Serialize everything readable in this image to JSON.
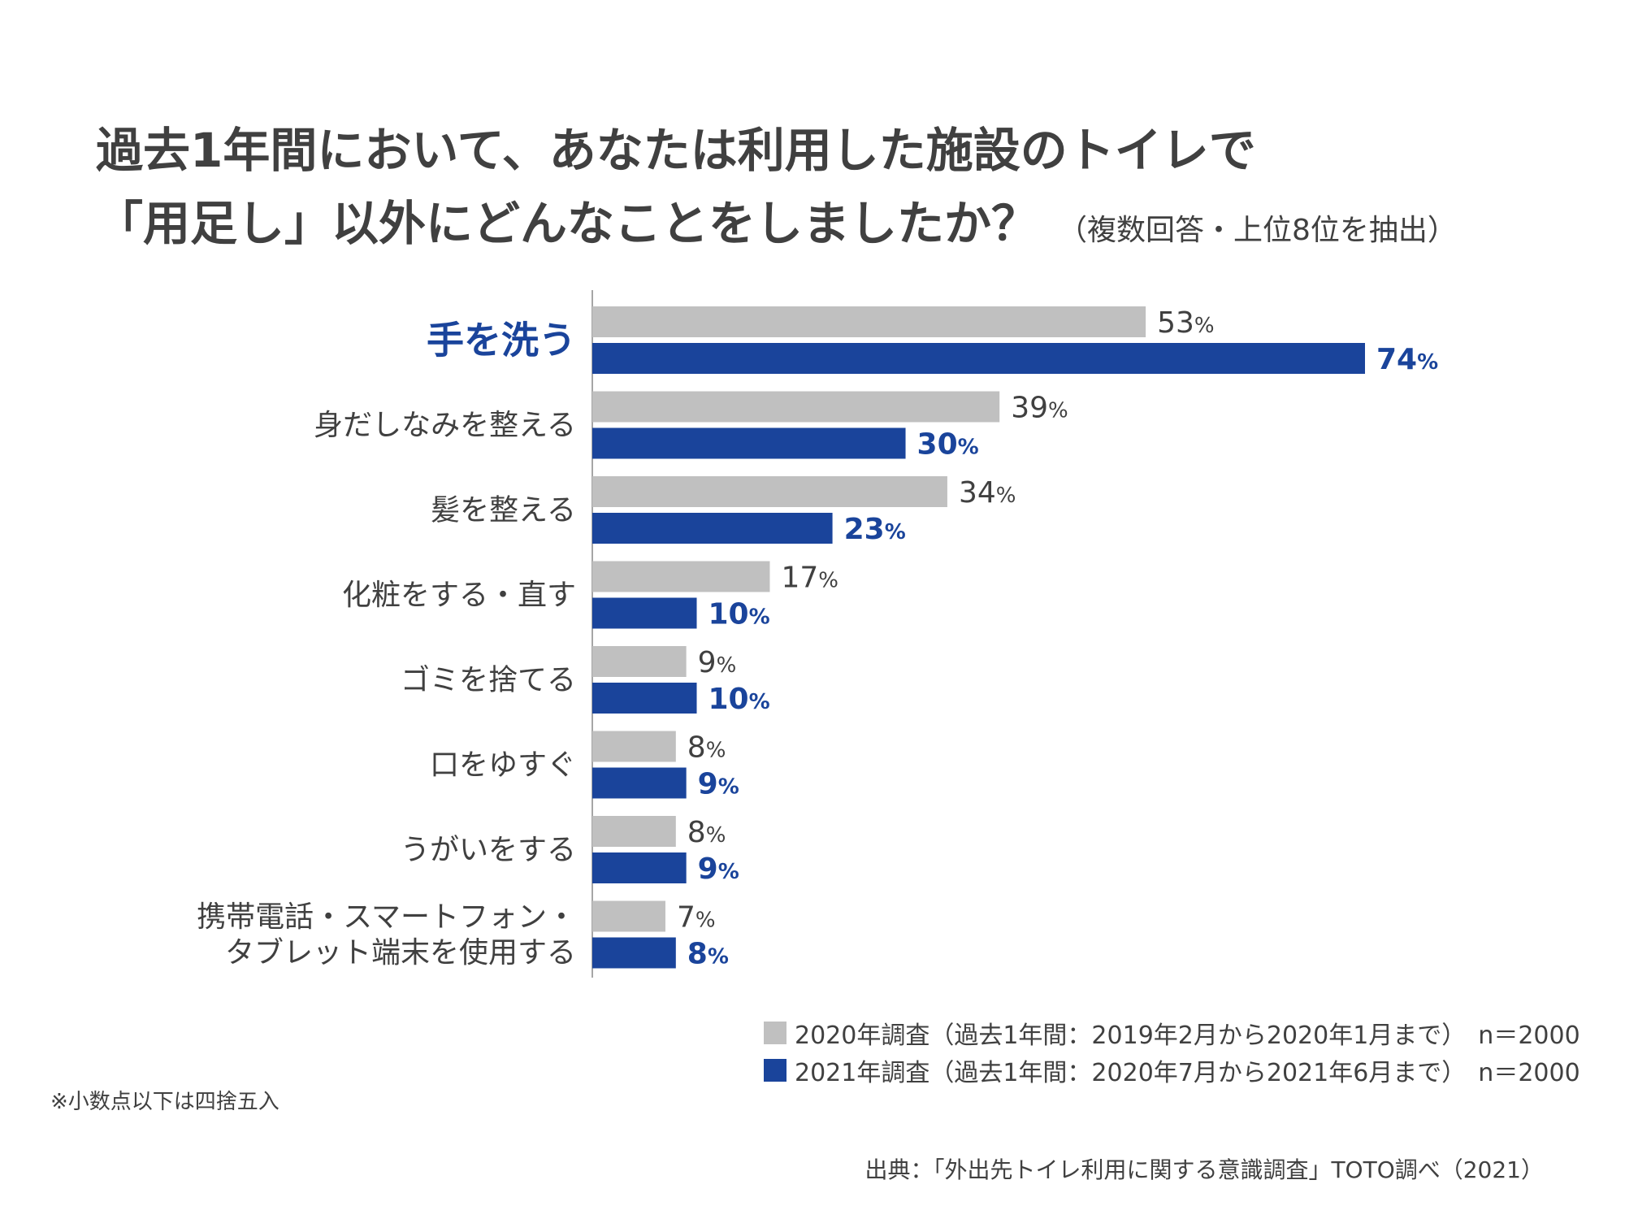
{
  "title": {
    "line1": "過去1年間において、あなたは利用した施設のトイレで",
    "line2": "「用足し」以外にどんなことをしましたか？",
    "subtitle": "（複数回答・上位8位を抽出）"
  },
  "chart_data": {
    "type": "bar",
    "orientation": "horizontal",
    "categories": [
      [
        "手を洗う"
      ],
      [
        "身だしなみを整える"
      ],
      [
        "髪を整える"
      ],
      [
        "化粧をする・直す"
      ],
      [
        "ゴミを捨てる"
      ],
      [
        "口をゆすぐ"
      ],
      [
        "うがいをする"
      ],
      [
        "携帯電話・スマートフォン・",
        "タブレット端末を使用する"
      ]
    ],
    "highlight_category_index": 0,
    "unit": "%",
    "xlim": [
      0,
      100
    ],
    "grid": false,
    "series": [
      {
        "name": "2020年調査（過去1年間：2019年2月から2020年1月まで）　n＝2000",
        "values": [
          53,
          39,
          34,
          17,
          9,
          8,
          8,
          7
        ],
        "color": "#c0c0c0",
        "label_color": "#404040"
      },
      {
        "name": "2021年調査（過去1年間：2020年7月から2021年6月まで）　n＝2000",
        "values": [
          74,
          30,
          23,
          10,
          10,
          9,
          9,
          8
        ],
        "color": "#1a449b",
        "label_color": "#1a449b"
      }
    ],
    "legend_position": "bottom-right"
  },
  "legend": {
    "items": [
      {
        "label": "2020年調査（過去1年間：2019年2月から2020年1月まで）　n＝2000",
        "color": "#c0c0c0"
      },
      {
        "label": "2021年調査（過去1年間：2020年7月から2021年6月まで）　n＝2000",
        "color": "#1a449b"
      }
    ]
  },
  "note": "※小数点以下は四捨五入",
  "source": "出典：「外出先トイレ利用に関する意識調査」TOTO調べ（2021）",
  "colors": {
    "accent": "#1a449b",
    "gray": "#c0c0c0",
    "text": "#404040"
  }
}
